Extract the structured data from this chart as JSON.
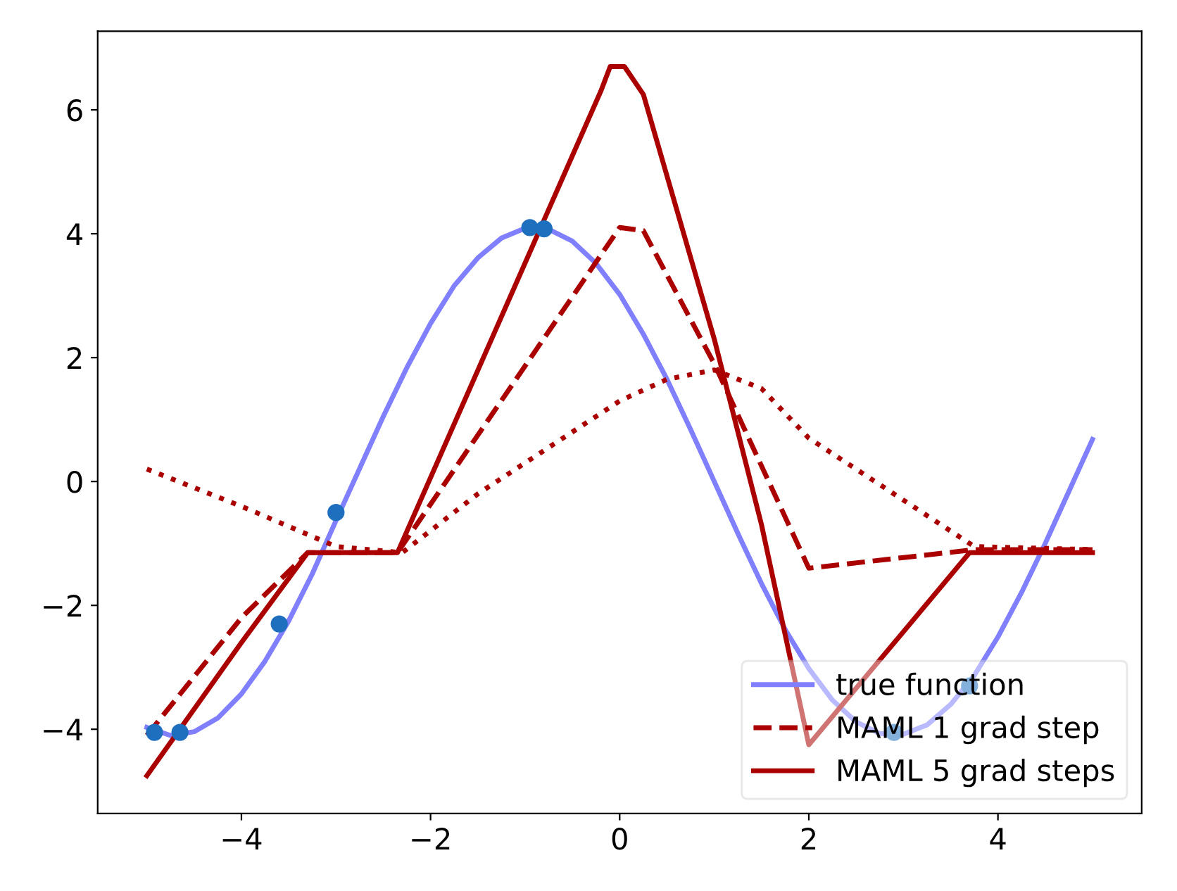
{
  "chart_data": {
    "type": "line",
    "xlim": [
      -5.52,
      5.52
    ],
    "ylim": [
      -5.36,
      7.27
    ],
    "xticks": [
      {
        "value": -4,
        "label": "−4"
      },
      {
        "value": -2,
        "label": "−2"
      },
      0,
      2,
      4
    ],
    "yticks": [
      {
        "value": -4,
        "label": "−4"
      },
      {
        "value": -2,
        "label": "−2"
      },
      0,
      2,
      4,
      6
    ],
    "grid": false,
    "legend": "bottom right",
    "series": [
      {
        "name": "true function",
        "color": "#8080ff",
        "line_style": "solid",
        "x": [
          -5,
          -4.75,
          -4.5,
          -4.25,
          -4,
          -3.75,
          -3.5,
          -3.25,
          -3,
          -2.75,
          -2.5,
          -2.25,
          -2,
          -1.75,
          -1.5,
          -1.25,
          -1,
          -0.75,
          -0.5,
          -0.25,
          0,
          0.25,
          0.5,
          0.75,
          1,
          1.25,
          1.5,
          1.75,
          2,
          2.25,
          2.5,
          2.75,
          3,
          3.25,
          3.5,
          3.75,
          4,
          4.25,
          4.5,
          4.75,
          5
        ],
        "values": [
          -3.97,
          -4.1,
          -4.04,
          -3.82,
          -3.43,
          -2.9,
          -2.25,
          -1.49,
          -0.63,
          0.21,
          1.05,
          1.84,
          2.55,
          3.16,
          3.61,
          3.93,
          4.09,
          4.07,
          3.88,
          3.52,
          3.02,
          2.38,
          1.65,
          0.84,
          0.0,
          -0.84,
          -1.65,
          -2.39,
          -3.02,
          -3.53,
          -3.88,
          -4.07,
          -4.08,
          -3.93,
          -3.6,
          -3.13,
          -2.51,
          -1.79,
          -1.0,
          -0.16,
          0.68
        ]
      },
      {
        "type": "scatter",
        "color": "#1f6fbf",
        "marker": "circle",
        "x": [
          -4.92,
          -4.65,
          -3.6,
          -3.0,
          -0.95,
          -0.8,
          2.9,
          3.7
        ],
        "values": [
          -4.05,
          -4.05,
          -2.3,
          -0.5,
          4.1,
          4.08,
          -4.05,
          -3.3
        ]
      },
      {
        "color": "#aa0000",
        "line_style": "dotted",
        "x": [
          -5,
          -4,
          -3,
          -2.3,
          -1.5,
          -0.5,
          0,
          0.5,
          1,
          1.5,
          2,
          3,
          3.75,
          5
        ],
        "values": [
          0.2,
          -0.4,
          -1.05,
          -1.15,
          -0.2,
          0.8,
          1.3,
          1.65,
          1.8,
          1.5,
          0.7,
          -0.3,
          -1.05,
          -1.1
        ]
      },
      {
        "name": "MAML 1 grad step",
        "color": "#aa0000",
        "line_style": "dashed",
        "x": [
          -5,
          -4,
          -3.3,
          -2.35,
          0,
          0.25,
          1.0,
          2.0,
          3.75,
          5
        ],
        "values": [
          -4.1,
          -2.2,
          -1.15,
          -1.15,
          4.1,
          4.05,
          1.9,
          -1.4,
          -1.1,
          -1.1
        ]
      },
      {
        "name": "MAML 5 grad steps",
        "color": "#aa0000",
        "line_style": "solid",
        "x": [
          -5,
          -4,
          -3.3,
          -2.35,
          -0.2,
          -0.1,
          0.05,
          0.25,
          1.0,
          1.5,
          2.0,
          3.7,
          5
        ],
        "values": [
          -4.75,
          -2.6,
          -1.15,
          -1.15,
          6.3,
          6.7,
          6.7,
          6.25,
          2.3,
          -0.7,
          -4.25,
          -1.15,
          -1.15
        ]
      }
    ]
  }
}
